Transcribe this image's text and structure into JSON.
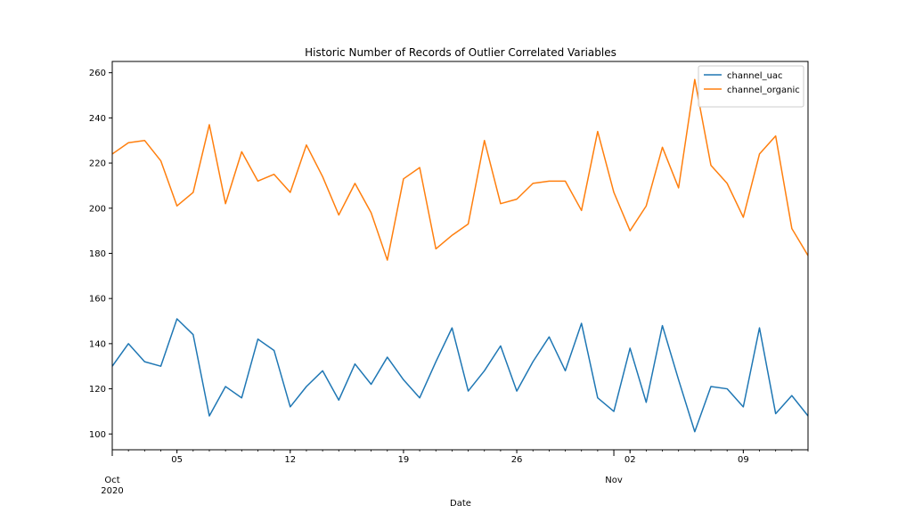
{
  "chart_data": {
    "type": "line",
    "title": "Historic Number of Records of Outlier Correlated Variables",
    "xlabel": "Date",
    "ylabel": "",
    "x_range": [
      "2020-10-01",
      "2020-11-13"
    ],
    "ylim": [
      93,
      265
    ],
    "y_ticks": [
      100,
      120,
      140,
      160,
      180,
      200,
      220,
      240,
      260
    ],
    "x_major_ticks": [
      {
        "date": "2020-10-01",
        "lines": [
          "Oct",
          "2020"
        ]
      },
      {
        "date": "2020-11-01",
        "lines": [
          "Nov"
        ]
      }
    ],
    "x_minor_ticks": [
      {
        "date": "2020-10-05",
        "label": "05"
      },
      {
        "date": "2020-10-12",
        "label": "12"
      },
      {
        "date": "2020-10-19",
        "label": "19"
      },
      {
        "date": "2020-10-26",
        "label": "26"
      },
      {
        "date": "2020-11-02",
        "label": "02"
      },
      {
        "date": "2020-11-09",
        "label": "09"
      }
    ],
    "grid": false,
    "legend_position": "top-right",
    "dates": [
      "2020-10-01",
      "2020-10-02",
      "2020-10-03",
      "2020-10-04",
      "2020-10-05",
      "2020-10-06",
      "2020-10-07",
      "2020-10-08",
      "2020-10-09",
      "2020-10-10",
      "2020-10-11",
      "2020-10-12",
      "2020-10-13",
      "2020-10-14",
      "2020-10-15",
      "2020-10-16",
      "2020-10-17",
      "2020-10-18",
      "2020-10-19",
      "2020-10-20",
      "2020-10-21",
      "2020-10-22",
      "2020-10-23",
      "2020-10-24",
      "2020-10-25",
      "2020-10-26",
      "2020-10-27",
      "2020-10-28",
      "2020-10-29",
      "2020-10-30",
      "2020-10-31",
      "2020-11-01",
      "2020-11-02",
      "2020-11-03",
      "2020-11-04",
      "2020-11-05",
      "2020-11-06",
      "2020-11-07",
      "2020-11-08",
      "2020-11-09",
      "2020-11-10",
      "2020-11-11",
      "2020-11-12",
      "2020-11-13"
    ],
    "series": [
      {
        "name": "channel_uac",
        "color": "#1f77b4",
        "values": [
          130,
          140,
          132,
          130,
          151,
          144,
          108,
          121,
          116,
          142,
          137,
          112,
          121,
          128,
          115,
          131,
          122,
          134,
          124,
          116,
          132,
          147,
          119,
          128,
          139,
          119,
          132,
          143,
          128,
          149,
          116,
          110,
          138,
          114,
          148,
          124,
          101,
          121,
          120,
          112,
          147,
          109,
          117,
          108
        ]
      },
      {
        "name": "channel_organic",
        "color": "#ff7f0e",
        "values": [
          224,
          229,
          230,
          221,
          201,
          207,
          237,
          202,
          225,
          212,
          215,
          207,
          228,
          214,
          197,
          211,
          198,
          177,
          213,
          218,
          182,
          188,
          193,
          230,
          202,
          204,
          211,
          212,
          212,
          199,
          234,
          207,
          190,
          201,
          227,
          209,
          257,
          219,
          211,
          196,
          224,
          232,
          191,
          179
        ]
      }
    ]
  }
}
